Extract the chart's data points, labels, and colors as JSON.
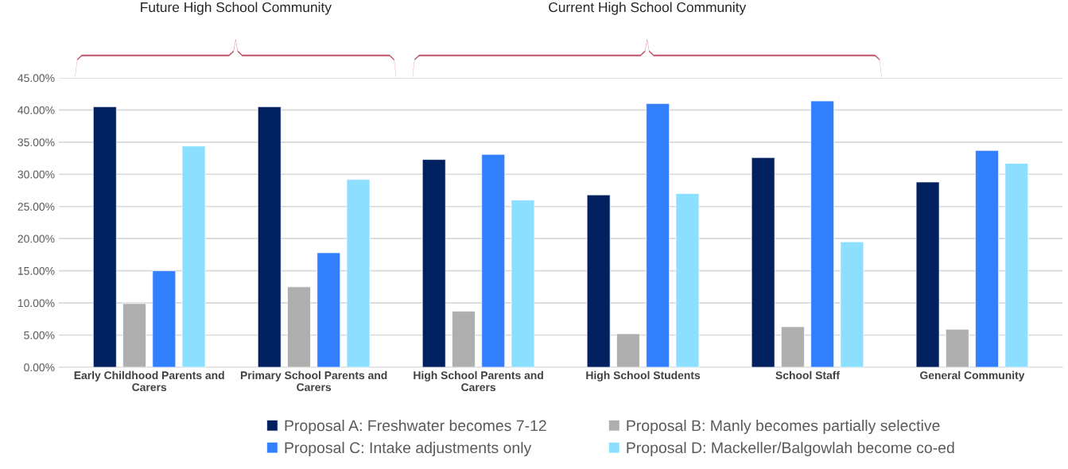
{
  "chart_data": {
    "type": "bar",
    "categories": [
      "Early Childhood Parents and\nCarers",
      "Primary School Parents and\nCarers",
      "High School Parents and\nCarers",
      "High School Students",
      "School Staff",
      "General Community"
    ],
    "series": [
      {
        "name": "Proposal A: Freshwater becomes 7-12",
        "color": "#002060",
        "values": [
          40.5,
          40.5,
          32.3,
          26.8,
          32.6,
          28.8
        ]
      },
      {
        "name": "Proposal B: Manly becomes partially selective",
        "color": "#afafaf",
        "values": [
          9.9,
          12.5,
          8.7,
          5.2,
          6.3,
          5.9
        ]
      },
      {
        "name": "Proposal C: Intake adjustments only",
        "color": "#3380ff",
        "values": [
          15.0,
          17.8,
          33.1,
          41.0,
          41.4,
          33.7
        ]
      },
      {
        "name": "Proposal D: Mackeller/Balgowlah become co-ed",
        "color": "#8ddfff",
        "values": [
          34.4,
          29.2,
          26.0,
          27.0,
          19.5,
          31.7
        ]
      }
    ],
    "ylim": [
      0,
      45
    ],
    "yticks": [
      {
        "value": 0,
        "label": "0.00%"
      },
      {
        "value": 5,
        "label": "5.00%"
      },
      {
        "value": 10,
        "label": "10.00%"
      },
      {
        "value": 15,
        "label": "15.00%"
      },
      {
        "value": 20,
        "label": "20.00%"
      },
      {
        "value": 25,
        "label": "25.00%"
      },
      {
        "value": 30,
        "label": "30.00%"
      },
      {
        "value": 35,
        "label": "35.00%"
      },
      {
        "value": 40,
        "label": "40.00%"
      },
      {
        "value": 45,
        "label": "45.00%"
      }
    ],
    "annotations": [
      "Future High School Community",
      "Current High School Community"
    ],
    "grid": "y",
    "legend": "bottom"
  }
}
